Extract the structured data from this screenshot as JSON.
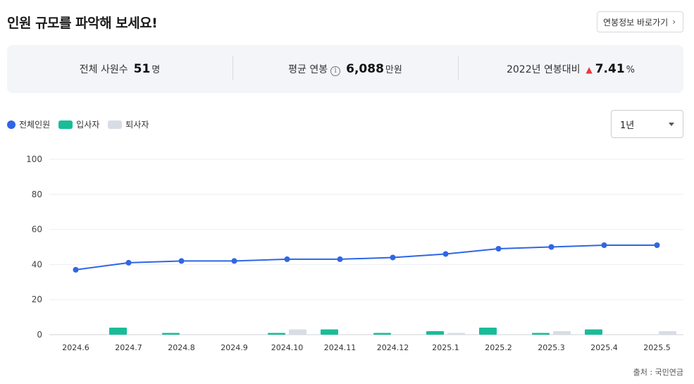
{
  "header": {
    "title": "인원 규모를 파악해 보세요!",
    "link_label": "연봉정보 바로가기"
  },
  "stats": [
    {
      "label": "전체 사원수",
      "value": "51",
      "unit": "명"
    },
    {
      "label": "평균 연봉",
      "value": "6,088",
      "unit": "만원"
    },
    {
      "label": "2022년 연봉대비",
      "value": "7.41",
      "unit": "%"
    }
  ],
  "period_select": {
    "value": "1년"
  },
  "source": "출처 : 국민연금",
  "colors": {
    "total": "#2f66e6",
    "hired": "#18bd98",
    "resigned": "#d8dde5"
  },
  "chart_data": {
    "type": "bar",
    "categories": [
      "2024.6",
      "2024.7",
      "2024.8",
      "2024.9",
      "2024.10",
      "2024.11",
      "2024.12",
      "2025.1",
      "2025.2",
      "2025.3",
      "2025.4",
      "2025.5"
    ],
    "series": [
      {
        "name": "전체인원",
        "type": "line",
        "values": [
          37,
          41,
          42,
          42,
          43,
          43,
          44,
          46,
          49,
          50,
          51,
          51
        ]
      },
      {
        "name": "입사자",
        "type": "bar",
        "values": [
          0,
          4,
          1,
          0,
          1,
          3,
          1,
          2,
          4,
          1,
          3,
          0
        ]
      },
      {
        "name": "퇴사자",
        "type": "bar",
        "values": [
          0,
          0,
          0,
          0,
          3,
          0,
          0,
          1,
          0,
          2,
          0,
          2
        ]
      }
    ],
    "yticks": [
      0,
      20,
      40,
      60,
      80,
      100
    ],
    "ylim": [
      0,
      100
    ],
    "grid": true,
    "legend": "top-left"
  }
}
